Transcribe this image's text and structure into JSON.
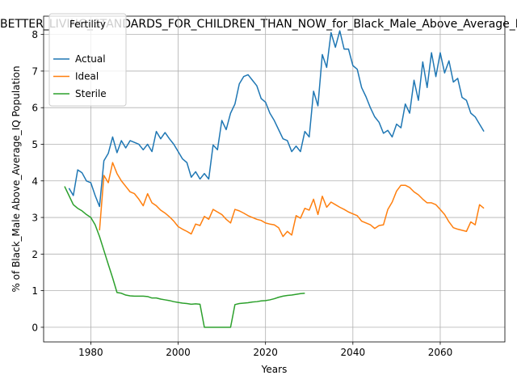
{
  "chart_data": {
    "type": "line",
    "title": "BETTER_LIVING_STANDARDS_FOR_CHILDREN_THAN_NOW_for_Black_Male_Above_Average_IQ",
    "xlabel": "Years",
    "ylabel": "% of Black_Male Above_Average_IQ Population",
    "xlim": [
      1969.2,
      2074.8
    ],
    "ylim": [
      -0.4,
      8.5
    ],
    "xticks": [
      1980,
      2000,
      2020,
      2040,
      2060
    ],
    "yticks": [
      0,
      1,
      2,
      3,
      4,
      5,
      6,
      7,
      8
    ],
    "grid": true,
    "legend": {
      "title": "Fertility",
      "position": "top-left"
    },
    "series": [
      {
        "name": "Actual",
        "color": "#1f77b4",
        "x": [
          1975,
          1976,
          1977,
          1978,
          1979,
          1980,
          1981,
          1982,
          1983,
          1984,
          1985,
          1986,
          1987,
          1988,
          1989,
          1990,
          1991,
          1992,
          1993,
          1994,
          1995,
          1996,
          1997,
          1998,
          1999,
          2000,
          2001,
          2002,
          2003,
          2004,
          2005,
          2006,
          2007,
          2008,
          2009,
          2010,
          2011,
          2012,
          2013,
          2014,
          2015,
          2016,
          2017,
          2018,
          2019,
          2020,
          2021,
          2022,
          2023,
          2024,
          2025,
          2026,
          2027,
          2028,
          2029,
          2030,
          2031,
          2032,
          2033,
          2034,
          2035,
          2036,
          2037,
          2038,
          2039,
          2040,
          2041,
          2042,
          2043,
          2044,
          2045,
          2046,
          2047,
          2048,
          2049,
          2050,
          2051,
          2052,
          2053,
          2054,
          2055,
          2056,
          2057,
          2058,
          2059,
          2060,
          2061,
          2062,
          2063,
          2064,
          2065,
          2066,
          2067,
          2068,
          2069,
          2070
        ],
        "y": [
          3.8,
          3.6,
          4.3,
          4.22,
          4.0,
          3.95,
          3.6,
          3.3,
          4.55,
          4.75,
          5.2,
          4.77,
          5.1,
          4.9,
          5.1,
          5.05,
          5.0,
          4.85,
          5.0,
          4.8,
          5.35,
          5.15,
          5.32,
          5.15,
          5.0,
          4.8,
          4.6,
          4.5,
          4.1,
          4.25,
          4.05,
          4.2,
          4.05,
          4.98,
          4.85,
          5.65,
          5.4,
          5.85,
          6.1,
          6.65,
          6.85,
          6.9,
          6.75,
          6.6,
          6.25,
          6.15,
          5.85,
          5.65,
          5.4,
          5.15,
          5.1,
          4.8,
          4.95,
          4.8,
          5.35,
          5.2,
          6.45,
          6.05,
          7.45,
          7.1,
          8.05,
          7.65,
          8.1,
          7.6,
          7.6,
          7.15,
          7.05,
          6.55,
          6.3,
          6.0,
          5.75,
          5.6,
          5.3,
          5.38,
          5.2,
          5.55,
          5.45,
          6.1,
          5.85,
          6.75,
          6.2,
          7.25,
          6.55,
          7.5,
          6.85,
          7.5,
          6.95,
          7.28,
          6.7,
          6.8,
          6.28,
          6.2,
          5.85,
          5.75,
          5.55,
          5.35
        ]
      },
      {
        "name": "Ideal",
        "color": "#ff7f0e",
        "x": [
          1982,
          1983,
          1984,
          1985,
          1986,
          1987,
          1988,
          1989,
          1990,
          1991,
          1992,
          1993,
          1994,
          1995,
          1996,
          1997,
          1998,
          1999,
          2000,
          2001,
          2002,
          2003,
          2004,
          2005,
          2006,
          2007,
          2008,
          2009,
          2010,
          2011,
          2012,
          2013,
          2014,
          2015,
          2016,
          2017,
          2018,
          2019,
          2020,
          2021,
          2022,
          2023,
          2024,
          2025,
          2026,
          2027,
          2028,
          2029,
          2030,
          2031,
          2032,
          2033,
          2034,
          2035,
          2036,
          2037,
          2038,
          2039,
          2040,
          2041,
          2042,
          2043,
          2044,
          2045,
          2046,
          2047,
          2048,
          2049,
          2050,
          2051,
          2052,
          2053,
          2054,
          2055,
          2056,
          2057,
          2058,
          2059,
          2060,
          2061,
          2062,
          2063,
          2064,
          2065,
          2066,
          2067,
          2068,
          2069,
          2070
        ],
        "y": [
          2.65,
          4.15,
          3.95,
          4.5,
          4.2,
          4.0,
          3.85,
          3.7,
          3.65,
          3.5,
          3.32,
          3.65,
          3.4,
          3.32,
          3.2,
          3.12,
          3.02,
          2.9,
          2.75,
          2.68,
          2.62,
          2.55,
          2.82,
          2.78,
          3.03,
          2.95,
          3.22,
          3.15,
          3.08,
          2.95,
          2.85,
          3.22,
          3.18,
          3.12,
          3.05,
          3.0,
          2.95,
          2.92,
          2.85,
          2.82,
          2.8,
          2.72,
          2.48,
          2.62,
          2.52,
          3.05,
          2.98,
          3.25,
          3.2,
          3.5,
          3.08,
          3.58,
          3.28,
          3.42,
          3.35,
          3.28,
          3.22,
          3.15,
          3.1,
          3.05,
          2.9,
          2.85,
          2.8,
          2.7,
          2.78,
          2.8,
          3.22,
          3.42,
          3.72,
          3.88,
          3.88,
          3.82,
          3.7,
          3.62,
          3.5,
          3.4,
          3.4,
          3.35,
          3.22,
          3.08,
          2.88,
          2.72,
          2.68,
          2.65,
          2.62,
          2.88,
          2.8,
          3.35,
          3.25
        ]
      },
      {
        "name": "Sterile",
        "color": "#2ca02c",
        "x": [
          1974,
          1975,
          1976,
          1977,
          1978,
          1979,
          1980,
          1981,
          1982,
          1983,
          1984,
          1985,
          1986,
          1987,
          1988,
          1989,
          1990,
          1991,
          1992,
          1993,
          1994,
          1995,
          1996,
          1997,
          1998,
          1999,
          2000,
          2001,
          2002,
          2003,
          2004,
          2005,
          2006,
          2007,
          2008,
          2009,
          2010,
          2011,
          2012,
          2013,
          2014,
          2015,
          2016,
          2017,
          2018,
          2019,
          2020,
          2021,
          2022,
          2023,
          2024,
          2025,
          2026,
          2027,
          2028,
          2029
        ],
        "y": [
          3.85,
          3.6,
          3.35,
          3.25,
          3.18,
          3.08,
          3.0,
          2.8,
          2.48,
          2.1,
          1.72,
          1.35,
          0.95,
          0.93,
          0.88,
          0.86,
          0.85,
          0.85,
          0.85,
          0.84,
          0.8,
          0.8,
          0.77,
          0.75,
          0.73,
          0.7,
          0.68,
          0.66,
          0.65,
          0.63,
          0.64,
          0.63,
          0.0,
          0.0,
          0.0,
          0.0,
          0.0,
          0.0,
          0.0,
          0.62,
          0.65,
          0.66,
          0.67,
          0.69,
          0.7,
          0.72,
          0.73,
          0.75,
          0.78,
          0.82,
          0.85,
          0.87,
          0.88,
          0.9,
          0.92,
          0.93
        ]
      }
    ]
  }
}
